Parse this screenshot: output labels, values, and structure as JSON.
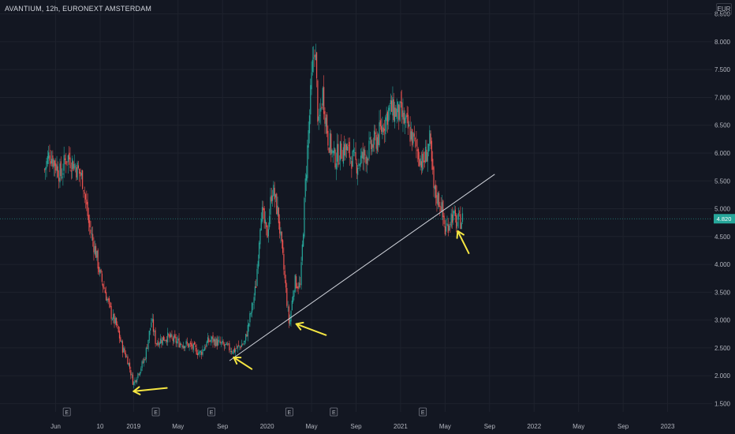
{
  "header": {
    "title": "AVANTIUM, 12h, EURONEXT AMSTERDAM",
    "currency": "EUR"
  },
  "colors": {
    "background": "#131722",
    "up": "#26a69a",
    "down": "#ef5350",
    "trendline": "#d1d4dc",
    "arrow": "#f5e642",
    "price_line": "#26a69a"
  },
  "chart_data": {
    "type": "candlestick",
    "title": "AVANTIUM, 12h, EURONEXT AMSTERDAM",
    "ylabel": "EUR",
    "ylim": [
      1.35,
      8.75
    ],
    "y_ticks": [
      1.5,
      2.0,
      2.5,
      3.0,
      3.5,
      4.0,
      4.5,
      5.0,
      5.5,
      6.0,
      6.5,
      7.0,
      7.5,
      8.0,
      8.5
    ],
    "y_tick_labels": [
      "1.500",
      "2.000",
      "2.500",
      "3.000",
      "3.500",
      "4.000",
      "4.500",
      "5.000",
      "5.500",
      "6.000",
      "6.500",
      "7.000",
      "7.500",
      "8.000",
      "8.500"
    ],
    "x_tick_labels": [
      "Jun",
      "10",
      "2019",
      "May",
      "Sep",
      "2020",
      "May",
      "Sep",
      "2021",
      "May",
      "Sep",
      "2022",
      "May",
      "Sep",
      "2023"
    ],
    "x_tick_dates": [
      "2018-06",
      "2018-10",
      "2019-01",
      "2019-05",
      "2019-09",
      "2020-01",
      "2020-05",
      "2020-09",
      "2021-01",
      "2021-05",
      "2021-09",
      "2022-01",
      "2022-05",
      "2022-09",
      "2023-01"
    ],
    "last_price": 4.82,
    "last_price_label": "4.820",
    "earnings_markers": [
      "E",
      "E",
      "E",
      "E",
      "E",
      "E"
    ],
    "earnings_dates": [
      "2018-07",
      "2019-03",
      "2019-08",
      "2020-03",
      "2020-07",
      "2021-03"
    ],
    "price_path": [
      {
        "date": "2018-05",
        "price": 5.7
      },
      {
        "date": "2018-05-15",
        "price": 6.0
      },
      {
        "date": "2018-06",
        "price": 5.8
      },
      {
        "date": "2018-06-15",
        "price": 5.6
      },
      {
        "date": "2018-07",
        "price": 5.95
      },
      {
        "date": "2018-07-15",
        "price": 5.85
      },
      {
        "date": "2018-08",
        "price": 5.7
      },
      {
        "date": "2018-08-15",
        "price": 5.5
      },
      {
        "date": "2018-09",
        "price": 4.7
      },
      {
        "date": "2018-09-20",
        "price": 4.2
      },
      {
        "date": "2018-10",
        "price": 3.8
      },
      {
        "date": "2018-10-15",
        "price": 3.5
      },
      {
        "date": "2018-11",
        "price": 3.1
      },
      {
        "date": "2018-11-15",
        "price": 2.9
      },
      {
        "date": "2018-12",
        "price": 2.5
      },
      {
        "date": "2018-12-15",
        "price": 2.3
      },
      {
        "date": "2019-01",
        "price": 1.85
      },
      {
        "date": "2019-01-10",
        "price": 2.0
      },
      {
        "date": "2019-02",
        "price": 2.3
      },
      {
        "date": "2019-02-20",
        "price": 3.0
      },
      {
        "date": "2019-03",
        "price": 2.6
      },
      {
        "date": "2019-04",
        "price": 2.7
      },
      {
        "date": "2019-05",
        "price": 2.6
      },
      {
        "date": "2019-06",
        "price": 2.55
      },
      {
        "date": "2019-07",
        "price": 2.4
      },
      {
        "date": "2019-07-20",
        "price": 2.6
      },
      {
        "date": "2019-08",
        "price": 2.65
      },
      {
        "date": "2019-09",
        "price": 2.55
      },
      {
        "date": "2019-10",
        "price": 2.45
      },
      {
        "date": "2019-11",
        "price": 2.6
      },
      {
        "date": "2019-11-20",
        "price": 3.2
      },
      {
        "date": "2019-12",
        "price": 3.6
      },
      {
        "date": "2019-12-15",
        "price": 5.0
      },
      {
        "date": "2020-01",
        "price": 4.5
      },
      {
        "date": "2020-01-15",
        "price": 5.4
      },
      {
        "date": "2020-02",
        "price": 4.9
      },
      {
        "date": "2020-02-15",
        "price": 4.0
      },
      {
        "date": "2020-03",
        "price": 2.9
      },
      {
        "date": "2020-03-15",
        "price": 3.7
      },
      {
        "date": "2020-04",
        "price": 3.6
      },
      {
        "date": "2020-04-15",
        "price": 5.5
      },
      {
        "date": "2020-05",
        "price": 7.3
      },
      {
        "date": "2020-05-10",
        "price": 8.0
      },
      {
        "date": "2020-05-20",
        "price": 6.4
      },
      {
        "date": "2020-06",
        "price": 7.1
      },
      {
        "date": "2020-06-15",
        "price": 6.3
      },
      {
        "date": "2020-07",
        "price": 5.9
      },
      {
        "date": "2020-08",
        "price": 6.1
      },
      {
        "date": "2020-09",
        "price": 5.8
      },
      {
        "date": "2020-10",
        "price": 6.0
      },
      {
        "date": "2020-11",
        "price": 6.3
      },
      {
        "date": "2020-12",
        "price": 6.8
      },
      {
        "date": "2021-01",
        "price": 6.7
      },
      {
        "date": "2021-02",
        "price": 6.3
      },
      {
        "date": "2021-03",
        "price": 5.8
      },
      {
        "date": "2021-03-20",
        "price": 6.2
      },
      {
        "date": "2021-04",
        "price": 5.3
      },
      {
        "date": "2021-04-20",
        "price": 5.1
      },
      {
        "date": "2021-05",
        "price": 4.6
      },
      {
        "date": "2021-05-20",
        "price": 4.9
      },
      {
        "date": "2021-06",
        "price": 4.75
      },
      {
        "date": "2021-06-20",
        "price": 4.82
      }
    ],
    "trendline": [
      {
        "date": "2019-09-20",
        "price": 2.27
      },
      {
        "date": "2021-09-15",
        "price": 5.62
      }
    ],
    "arrows": [
      {
        "from_date": "2019-04",
        "from_price": 1.78,
        "to_date": "2019-01",
        "to_price": 1.72
      },
      {
        "from_date": "2019-11-20",
        "from_price": 2.12,
        "to_date": "2019-10",
        "to_price": 2.33
      },
      {
        "from_date": "2020-06-10",
        "from_price": 2.73,
        "to_date": "2020-03-20",
        "to_price": 2.93
      },
      {
        "from_date": "2021-07-05",
        "from_price": 4.2,
        "to_date": "2021-06-05",
        "to_price": 4.6
      }
    ]
  }
}
